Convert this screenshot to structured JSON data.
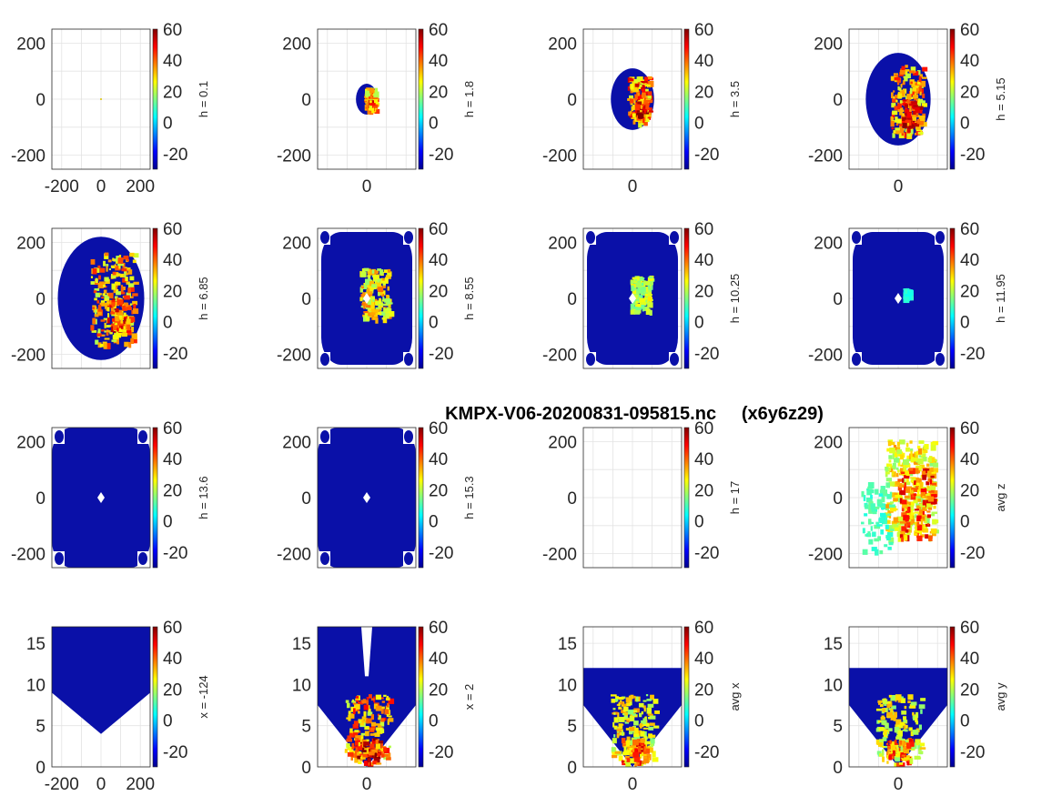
{
  "figure": {
    "title": "KMPX-V06-20200831-095815.nc     (x6y6z29)"
  },
  "colors": {
    "field": "#0a10a8",
    "colormap": [
      "#00008f",
      "#0000ff",
      "#0080ff",
      "#00ffff",
      "#80ff80",
      "#ffff00",
      "#ff8000",
      "#ff0000",
      "#800000"
    ]
  },
  "colorbar": {
    "range": [
      -30,
      60
    ],
    "ticks": [
      "60",
      "40",
      "20",
      "0",
      "-20"
    ],
    "tick_values": [
      60,
      40,
      20,
      0,
      -20
    ]
  },
  "chart_data": [
    {
      "type": "heatmap",
      "panel": "h = 0.1",
      "colorbar_label": "h = 0.1",
      "xlim": [
        -250,
        250
      ],
      "ylim": [
        -250,
        250
      ],
      "x_ticks": [
        "-200",
        "0",
        "200"
      ],
      "y_ticks": [
        "200",
        "0",
        "-200"
      ],
      "footprint": "point",
      "radius": 0,
      "intensity": 0
    },
    {
      "type": "heatmap",
      "panel": "h = 1.8",
      "colorbar_label": "h = 1.8",
      "xlim": [
        -250,
        250
      ],
      "ylim": [
        -250,
        250
      ],
      "x_ticks": [
        "0"
      ],
      "y_ticks": [
        "200",
        "0",
        "-200"
      ],
      "footprint": "ellipse",
      "radius": 55,
      "intensity": 0.8
    },
    {
      "type": "heatmap",
      "panel": "h = 3.5",
      "colorbar_label": "h = 3.5",
      "xlim": [
        -250,
        250
      ],
      "ylim": [
        -250,
        250
      ],
      "x_ticks": [
        "0"
      ],
      "y_ticks": [
        "200",
        "0",
        "-200"
      ],
      "footprint": "ellipse",
      "radius": 110,
      "intensity": 0.9
    },
    {
      "type": "heatmap",
      "panel": "h = 5.15",
      "colorbar_label": "h = 5.15",
      "xlim": [
        -250,
        250
      ],
      "ylim": [
        -250,
        250
      ],
      "x_ticks": [
        "0"
      ],
      "y_ticks": [
        "200",
        "0",
        "-200"
      ],
      "footprint": "ellipse",
      "radius": 165,
      "intensity": 0.8
    },
    {
      "type": "heatmap",
      "panel": "h = 6.85",
      "colorbar_label": "h = 6.85",
      "xlim": [
        -250,
        250
      ],
      "ylim": [
        -250,
        250
      ],
      "x_ticks": [],
      "y_ticks": [
        "200",
        "0",
        "-200"
      ],
      "footprint": "ellipse",
      "radius": 220,
      "intensity": 0.75
    },
    {
      "type": "heatmap",
      "panel": "h = 8.55",
      "colorbar_label": "h = 8.55",
      "xlim": [
        -250,
        250
      ],
      "ylim": [
        -250,
        250
      ],
      "x_ticks": [],
      "y_ticks": [
        "200",
        "0",
        "-200"
      ],
      "footprint": "rounded",
      "radius": 250,
      "intensity": 0.65
    },
    {
      "type": "heatmap",
      "panel": "h = 10.25",
      "colorbar_label": "h = 10.25",
      "xlim": [
        -250,
        250
      ],
      "ylim": [
        -250,
        250
      ],
      "x_ticks": [],
      "y_ticks": [
        "200",
        "0",
        "-200"
      ],
      "footprint": "rounded",
      "radius": 250,
      "intensity": 0.45
    },
    {
      "type": "heatmap",
      "panel": "h = 11.95",
      "colorbar_label": "h = 11.95",
      "xlim": [
        -250,
        250
      ],
      "ylim": [
        -250,
        250
      ],
      "x_ticks": [],
      "y_ticks": [
        "200",
        "0",
        "-200"
      ],
      "footprint": "rounded",
      "radius": 250,
      "intensity": 0.12
    },
    {
      "type": "heatmap",
      "panel": "h = 13.6",
      "colorbar_label": "h = 13.6",
      "xlim": [
        -250,
        250
      ],
      "ylim": [
        -250,
        250
      ],
      "x_ticks": [],
      "y_ticks": [
        "200",
        "0",
        "-200"
      ],
      "footprint": "full",
      "radius": 250,
      "intensity": 0
    },
    {
      "type": "heatmap",
      "panel": "h = 15.3",
      "colorbar_label": "h = 15.3",
      "xlim": [
        -250,
        250
      ],
      "ylim": [
        -250,
        250
      ],
      "x_ticks": [],
      "y_ticks": [
        "200",
        "0",
        "-200"
      ],
      "footprint": "full",
      "radius": 250,
      "intensity": 0
    },
    {
      "type": "heatmap",
      "panel": "h = 17",
      "colorbar_label": "h = 17",
      "xlim": [
        -250,
        250
      ],
      "ylim": [
        -250,
        250
      ],
      "x_ticks": [],
      "y_ticks": [
        "200",
        "0",
        "-200"
      ],
      "footprint": "none",
      "radius": 0,
      "intensity": 0
    },
    {
      "type": "heatmap",
      "panel": "avg z",
      "colorbar_label": "avg z",
      "xlim": [
        -250,
        250
      ],
      "ylim": [
        -250,
        250
      ],
      "x_ticks": [],
      "y_ticks": [
        "200",
        "0",
        "-200"
      ],
      "footprint": "blob",
      "radius": 200,
      "intensity": 0.85
    },
    {
      "type": "heatmap",
      "panel": "x = -124",
      "colorbar_label": "x = -124",
      "xlim": [
        -250,
        250
      ],
      "ylim": [
        0,
        17
      ],
      "x_ticks": [
        "-200",
        "0",
        "200"
      ],
      "y_ticks": [
        "15",
        "10",
        "5",
        "0"
      ],
      "footprint": "cone-full",
      "radius": 0,
      "intensity": 0
    },
    {
      "type": "heatmap",
      "panel": "x = 2",
      "colorbar_label": "x = 2",
      "xlim": [
        -250,
        250
      ],
      "ylim": [
        0,
        17
      ],
      "x_ticks": [
        "0"
      ],
      "y_ticks": [
        "15",
        "10",
        "5",
        "0"
      ],
      "footprint": "cone",
      "radius": 0,
      "intensity": 0.8
    },
    {
      "type": "heatmap",
      "panel": "avg x",
      "colorbar_label": "avg x",
      "xlim": [
        -250,
        250
      ],
      "ylim": [
        0,
        17
      ],
      "x_ticks": [
        "0"
      ],
      "y_ticks": [
        "15",
        "10",
        "5",
        "0"
      ],
      "footprint": "cone-avg",
      "radius": 0,
      "intensity": 0.6
    },
    {
      "type": "heatmap",
      "panel": "avg y",
      "colorbar_label": "avg y",
      "xlim": [
        -250,
        250
      ],
      "ylim": [
        0,
        17
      ],
      "x_ticks": [
        "0"
      ],
      "y_ticks": [
        "15",
        "10",
        "5",
        "0"
      ],
      "footprint": "cone-avg",
      "radius": 0,
      "intensity": 0.55
    }
  ]
}
